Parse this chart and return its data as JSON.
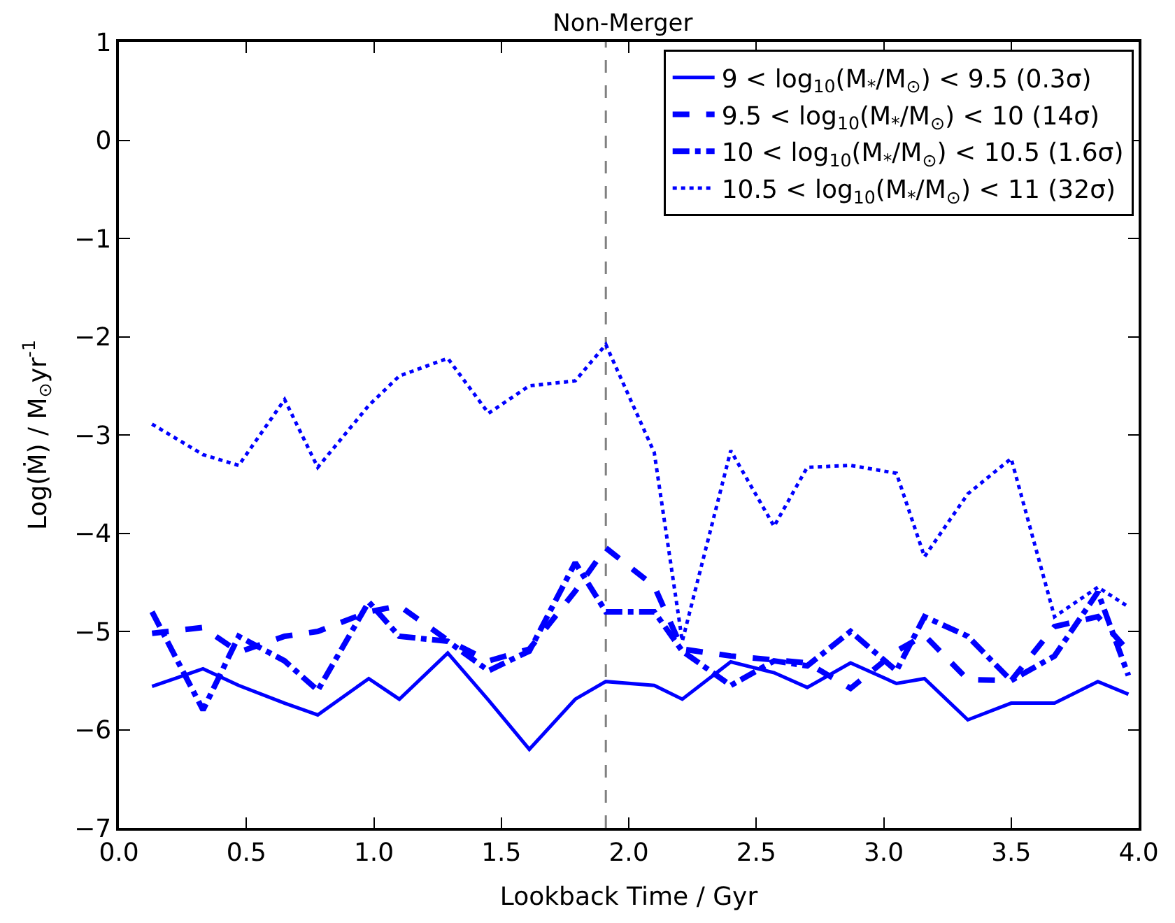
{
  "chart_data": {
    "type": "line",
    "title": "Non-Merger",
    "xlabel": "Lookback Time / Gyr",
    "ylabel": "Log(Ṁ) / M$_{⊙}$yr$^{-1}$",
    "x": [
      0.13,
      0.33,
      0.47,
      0.65,
      0.78,
      0.98,
      1.1,
      1.29,
      1.45,
      1.61,
      1.79,
      1.91,
      2.1,
      2.21,
      2.4,
      2.57,
      2.7,
      2.87,
      3.05,
      3.16,
      3.33,
      3.5,
      3.67,
      3.84,
      3.96
    ],
    "series": [
      {
        "name": "9 < log$_{10}$(M$_{*}$/M$_{⊙}$) < 9.5 (0.3σ)",
        "color": "#0000ff",
        "line_style": "solid",
        "values": [
          -5.56,
          -5.38,
          -5.55,
          -5.73,
          -5.85,
          -5.48,
          -5.69,
          -5.22,
          -5.7,
          -6.2,
          -5.69,
          -5.51,
          -5.55,
          -5.69,
          -5.31,
          -5.42,
          -5.57,
          -5.32,
          -5.53,
          -5.48,
          -5.9,
          -5.73,
          -5.73,
          -5.51,
          -5.64
        ]
      },
      {
        "name": "9.5 < log$_{10}$(M$_{*}$/M$_{⊙}$) < 10 (14σ)",
        "color": "#0000ff",
        "line_style": "dashed",
        "values": [
          -5.02,
          -4.96,
          -5.21,
          -5.05,
          -5.0,
          -4.8,
          -4.74,
          -5.09,
          -5.3,
          -5.18,
          -4.59,
          -4.15,
          -4.54,
          -5.18,
          -5.25,
          -5.29,
          -5.32,
          -5.58,
          -5.2,
          -5.04,
          -5.49,
          -5.5,
          -4.95,
          -4.85,
          -5.2
        ]
      },
      {
        "name": "10 < log$_{10}$(M$_{*}$/M$_{⊙}$) < 10.5 (1.6σ)",
        "color": "#0000ff",
        "line_style": "dashdot",
        "values": [
          -4.8,
          -5.8,
          -5.05,
          -5.3,
          -5.6,
          -4.7,
          -5.05,
          -5.1,
          -5.4,
          -5.2,
          -4.3,
          -4.8,
          -4.8,
          -5.2,
          -5.55,
          -5.3,
          -5.35,
          -5.0,
          -5.4,
          -4.85,
          -5.05,
          -5.5,
          -5.25,
          -4.6,
          -5.45
        ]
      },
      {
        "name": "10.5 < log$_{10}$(M$_{*}$/M$_{⊙}$) < 11 (32σ)",
        "color": "#0000ff",
        "line_style": "dotted",
        "values": [
          -2.89,
          -3.2,
          -3.31,
          -2.64,
          -3.33,
          -2.7,
          -2.4,
          -2.22,
          -2.78,
          -2.5,
          -2.45,
          -2.08,
          -3.18,
          -5.1,
          -3.16,
          -3.93,
          -3.33,
          -3.31,
          -3.39,
          -4.24,
          -3.6,
          -3.24,
          -4.85,
          -4.55,
          -4.75
        ]
      }
    ],
    "xlim": [
      0,
      4
    ],
    "xticks": [
      {
        "value": 0,
        "label": "0.0"
      },
      {
        "value": 0.5,
        "label": "0.5"
      },
      {
        "value": 1,
        "label": "1.0"
      },
      {
        "value": 1.5,
        "label": "1.5"
      },
      {
        "value": 2,
        "label": "2.0"
      },
      {
        "value": 2.5,
        "label": "2.5"
      },
      {
        "value": 3,
        "label": "3.0"
      },
      {
        "value": 3.5,
        "label": "3.5"
      },
      {
        "value": 4,
        "label": "4.0"
      }
    ],
    "ylim": [
      -7,
      1
    ],
    "yticks": [
      {
        "value": -7,
        "label": "−7"
      },
      {
        "value": -6,
        "label": "−6"
      },
      {
        "value": -5,
        "label": "−5"
      },
      {
        "value": -4,
        "label": "−4"
      },
      {
        "value": -3,
        "label": "−3"
      },
      {
        "value": -2,
        "label": "−2"
      },
      {
        "value": -1,
        "label": "−1"
      },
      0,
      1
    ],
    "ref_lines": [
      {
        "axis": "x",
        "value": 1.91,
        "color": "#808080",
        "line_style": "dashed"
      }
    ],
    "legend": "top right",
    "grid": false,
    "marker": "none"
  }
}
